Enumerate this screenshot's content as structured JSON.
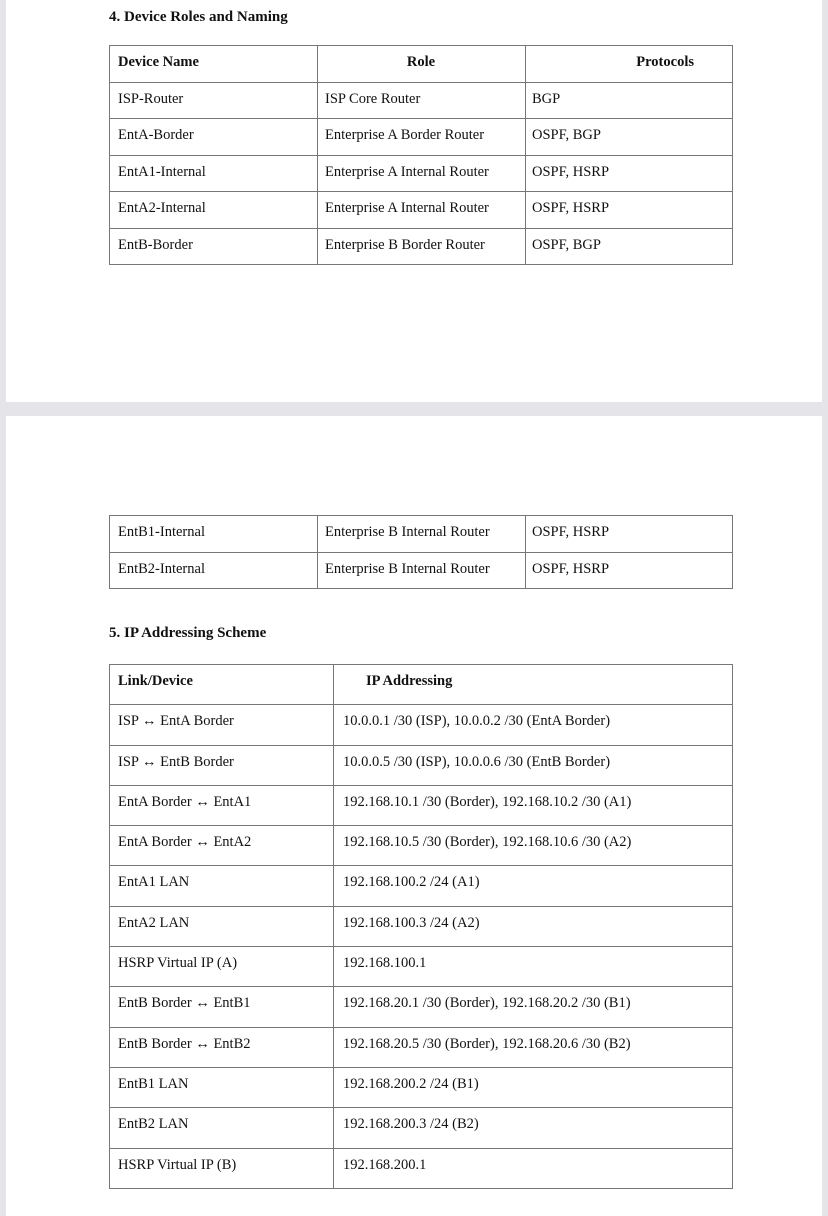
{
  "section4": {
    "title": "4. Device Roles and Naming",
    "headers": [
      "Device Name",
      "Role",
      "Protocols"
    ],
    "rows": [
      [
        "ISP-Router",
        "ISP Core Router",
        "BGP"
      ],
      [
        "EntA-Border",
        "Enterprise A Border Router",
        "OSPF, BGP"
      ],
      [
        "EntA1-Internal",
        "Enterprise A Internal Router",
        "OSPF, HSRP"
      ],
      [
        "EntA2-Internal",
        "Enterprise A Internal Router",
        "OSPF, HSRP"
      ],
      [
        "EntB-Border",
        "Enterprise B Border Router",
        "OSPF, BGP"
      ]
    ],
    "rows_cont": [
      [
        "EntB1-Internal",
        "Enterprise B Internal Router",
        "OSPF, HSRP"
      ],
      [
        "EntB2-Internal",
        "Enterprise B Internal Router",
        "OSPF, HSRP"
      ]
    ]
  },
  "section5": {
    "title": "5. IP Addressing Scheme",
    "headers": [
      "Link/Device",
      "IP Addressing"
    ],
    "rows": [
      [
        "ISP ↔ EntA Border",
        "10.0.0.1 /30 (ISP), 10.0.0.2 /30 (EntA Border)"
      ],
      [
        "ISP ↔ EntB Border",
        "10.0.0.5 /30 (ISP), 10.0.0.6 /30 (EntB Border)"
      ],
      [
        "EntA Border ↔ EntA1",
        "192.168.10.1 /30 (Border), 192.168.10.2 /30 (A1)"
      ],
      [
        "EntA Border ↔ EntA2",
        "192.168.10.5 /30 (Border), 192.168.10.6 /30 (A2)"
      ],
      [
        "EntA1 LAN",
        "192.168.100.2 /24 (A1)"
      ],
      [
        "EntA2 LAN",
        "192.168.100.3 /24 (A2)"
      ],
      [
        "HSRP Virtual IP (A)",
        "192.168.100.1"
      ],
      [
        "EntB Border ↔ EntB1",
        "192.168.20.1 /30 (Border), 192.168.20.2 /30 (B1)"
      ],
      [
        "EntB Border ↔ EntB2",
        "192.168.20.5 /30 (Border), 192.168.20.6 /30 (B2)"
      ],
      [
        "EntB1 LAN",
        "192.168.200.2 /24 (B1)"
      ],
      [
        "EntB2 LAN",
        "192.168.200.3 /24 (B2)"
      ],
      [
        "HSRP Virtual IP (B)",
        "192.168.200.1"
      ]
    ]
  }
}
